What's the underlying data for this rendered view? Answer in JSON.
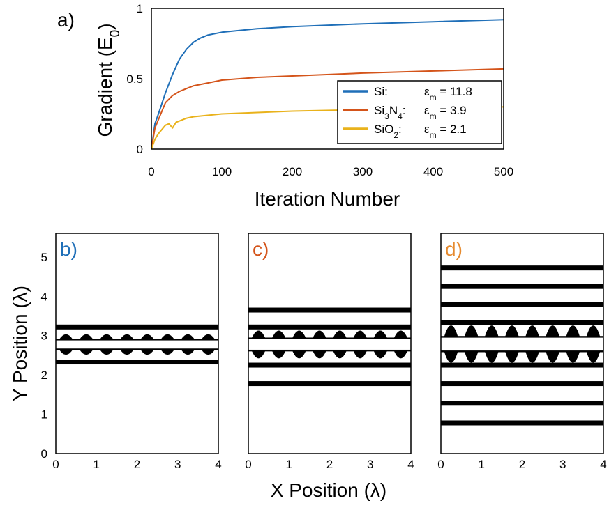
{
  "chart_data": [
    {
      "type": "line",
      "panel_label": "a)",
      "xlabel": "Iteration Number",
      "ylabel_main": "Gradient (E",
      "ylabel_sub": "0",
      "ylabel_end": ")",
      "xlim": [
        0,
        500
      ],
      "ylim": [
        0,
        1
      ],
      "xticks": [
        "0",
        "100",
        "200",
        "300",
        "400",
        "500"
      ],
      "yticks": [
        "0",
        "0.5",
        "1"
      ],
      "legend_position": "lower-right",
      "series": [
        {
          "name": "Si:",
          "name_parts": [
            "Si",
            ":",
            "",
            ""
          ],
          "annotation_parts": [
            "ε",
            "m",
            " = 11.8"
          ],
          "color": "#1f6fb8",
          "x": [
            0,
            5,
            10,
            20,
            30,
            40,
            50,
            60,
            70,
            80,
            100,
            150,
            200,
            300,
            400,
            500
          ],
          "y": [
            0,
            0.18,
            0.25,
            0.4,
            0.53,
            0.64,
            0.71,
            0.76,
            0.79,
            0.81,
            0.83,
            0.855,
            0.87,
            0.89,
            0.905,
            0.92
          ]
        },
        {
          "name": "Si3N4:",
          "name_parts": [
            "Si",
            "3",
            "N",
            "4"
          ],
          "name_tail": ":",
          "annotation_parts": [
            "ε",
            "m",
            " = 3.9"
          ],
          "color": "#d4541a",
          "x": [
            0,
            5,
            10,
            20,
            30,
            40,
            50,
            60,
            80,
            100,
            150,
            200,
            300,
            400,
            500
          ],
          "y": [
            0,
            0.15,
            0.21,
            0.33,
            0.38,
            0.41,
            0.43,
            0.45,
            0.47,
            0.49,
            0.51,
            0.52,
            0.54,
            0.555,
            0.57
          ]
        },
        {
          "name": "SiO2:",
          "name_parts": [
            "SiO",
            "2",
            ":",
            ""
          ],
          "annotation_parts": [
            "ε",
            "m",
            " = 2.1"
          ],
          "color": "#e9b21b",
          "x": [
            0,
            5,
            10,
            15,
            20,
            25,
            30,
            35,
            40,
            50,
            60,
            80,
            100,
            150,
            200,
            300,
            400,
            500
          ],
          "y": [
            0,
            0.07,
            0.11,
            0.14,
            0.17,
            0.18,
            0.15,
            0.19,
            0.2,
            0.22,
            0.23,
            0.24,
            0.25,
            0.26,
            0.27,
            0.28,
            0.295,
            0.3
          ]
        }
      ]
    },
    {
      "type": "diagram-panels",
      "xlabel": "X Position (λ)",
      "ylabel": "Y Position (λ)",
      "xlim": [
        0,
        4
      ],
      "ylim": [
        0,
        5.6
      ],
      "xticks": [
        "0",
        "1",
        "2",
        "3",
        "4"
      ],
      "yticks": [
        "0",
        "1",
        "2",
        "3",
        "4",
        "5"
      ],
      "panels": [
        {
          "label": "b)",
          "color": "#1f6fb8",
          "bars": [
            3.22,
            2.33
          ],
          "inner_top": 2.9,
          "inner_bottom": 2.65,
          "pads": 8,
          "pad_height": 0.15
        },
        {
          "label": "c)",
          "color": "#d4541a",
          "bars": [
            3.65,
            3.22,
            2.25,
            1.78
          ],
          "inner_top": 2.93,
          "inner_bottom": 2.62,
          "pads": 8,
          "pad_height": 0.22
        },
        {
          "label": "d)",
          "color": "#e68a2e",
          "bars": [
            4.72,
            4.25,
            3.8,
            3.33,
            2.25,
            1.78,
            1.28,
            0.78
          ],
          "inner_top": 2.97,
          "inner_bottom": 2.6,
          "pads": 8,
          "pad_height": 0.32
        }
      ]
    }
  ]
}
